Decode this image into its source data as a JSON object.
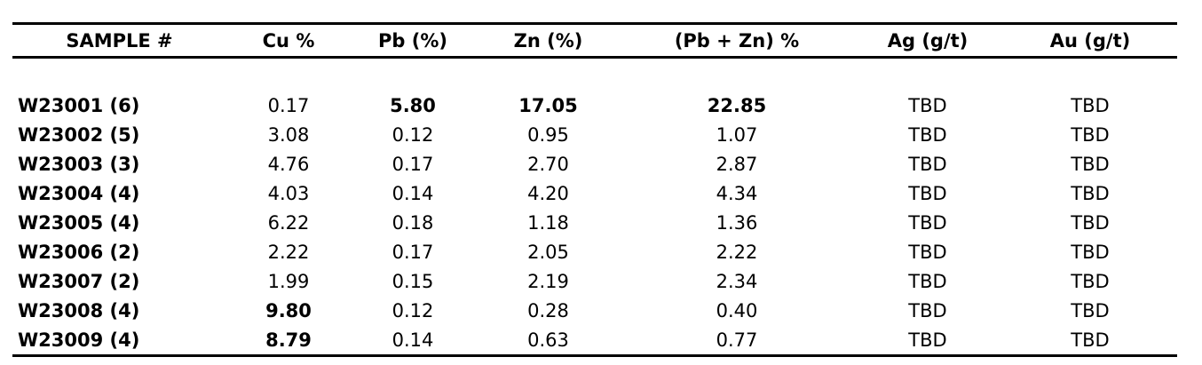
{
  "colors": {
    "text": "#000000",
    "background": "#ffffff",
    "rule_lines": "#000000"
  },
  "table": {
    "columns": [
      "SAMPLE #",
      "Cu %",
      "Pb (%)",
      "Zn (%)",
      "(Pb + Zn) %",
      "Ag (g/t)",
      "Au (g/t)"
    ],
    "rows": [
      {
        "sample": "W23001 (6)",
        "cu": "0.17",
        "pb": "5.80",
        "zn": "17.05",
        "pbzn": "22.85",
        "ag": "TBD",
        "au": "TBD"
      },
      {
        "sample": "W23002 (5)",
        "cu": "3.08",
        "pb": "0.12",
        "zn": "0.95",
        "pbzn": "1.07",
        "ag": "TBD",
        "au": "TBD"
      },
      {
        "sample": "W23003 (3)",
        "cu": "4.76",
        "pb": "0.17",
        "zn": "2.70",
        "pbzn": "2.87",
        "ag": "TBD",
        "au": "TBD"
      },
      {
        "sample": "W23004 (4)",
        "cu": "4.03",
        "pb": "0.14",
        "zn": "4.20",
        "pbzn": "4.34",
        "ag": "TBD",
        "au": "TBD"
      },
      {
        "sample": "W23005 (4)",
        "cu": "6.22",
        "pb": "0.18",
        "zn": "1.18",
        "pbzn": "1.36",
        "ag": "TBD",
        "au": "TBD"
      },
      {
        "sample": "W23006 (2)",
        "cu": "2.22",
        "pb": "0.17",
        "zn": "2.05",
        "pbzn": "2.22",
        "ag": "TBD",
        "au": "TBD"
      },
      {
        "sample": "W23007 (2)",
        "cu": "1.99",
        "pb": "0.15",
        "zn": "2.19",
        "pbzn": "2.34",
        "ag": "TBD",
        "au": "TBD"
      },
      {
        "sample": "W23008 (4)",
        "cu": "9.80",
        "pb": "0.12",
        "zn": "0.28",
        "pbzn": "0.40",
        "ag": "TBD",
        "au": "TBD"
      },
      {
        "sample": "W23009 (4)",
        "cu": "8.79",
        "pb": "0.14",
        "zn": "0.63",
        "pbzn": "0.77",
        "ag": "TBD",
        "au": "TBD"
      }
    ]
  },
  "chart_data": {
    "type": "table",
    "columns": [
      "SAMPLE #",
      "Cu %",
      "Pb (%)",
      "Zn (%)",
      "(Pb + Zn) %",
      "Ag (g/t)",
      "Au (g/t)"
    ],
    "rows": [
      [
        "W23001 (6)",
        0.17,
        5.8,
        17.05,
        22.85,
        "TBD",
        "TBD"
      ],
      [
        "W23002 (5)",
        3.08,
        0.12,
        0.95,
        1.07,
        "TBD",
        "TBD"
      ],
      [
        "W23003 (3)",
        4.76,
        0.17,
        2.7,
        2.87,
        "TBD",
        "TBD"
      ],
      [
        "W23004 (4)",
        4.03,
        0.14,
        4.2,
        4.34,
        "TBD",
        "TBD"
      ],
      [
        "W23005 (4)",
        6.22,
        0.18,
        1.18,
        1.36,
        "TBD",
        "TBD"
      ],
      [
        "W23006 (2)",
        2.22,
        0.17,
        2.05,
        2.22,
        "TBD",
        "TBD"
      ],
      [
        "W23007 (2)",
        1.99,
        0.15,
        2.19,
        2.34,
        "TBD",
        "TBD"
      ],
      [
        "W23008 (4)",
        9.8,
        0.12,
        0.28,
        0.4,
        "TBD",
        "TBD"
      ],
      [
        "W23009 (4)",
        8.79,
        0.14,
        0.63,
        0.77,
        "TBD",
        "TBD"
      ]
    ],
    "layout_hints": {
      "header_rule_above_and_below": true,
      "bottom_rule": true,
      "no_vertical_rules": true,
      "bold_sample_ids": true,
      "emphasized_cells": [
        {
          "row": "W23001 (6)",
          "columns": [
            "Pb (%)",
            "Zn (%)",
            "(Pb + Zn) %"
          ]
        },
        {
          "row": "W23008 (4)",
          "columns": [
            "Cu %"
          ]
        },
        {
          "row": "W23009 (4)",
          "columns": [
            "Cu %"
          ]
        }
      ]
    }
  }
}
